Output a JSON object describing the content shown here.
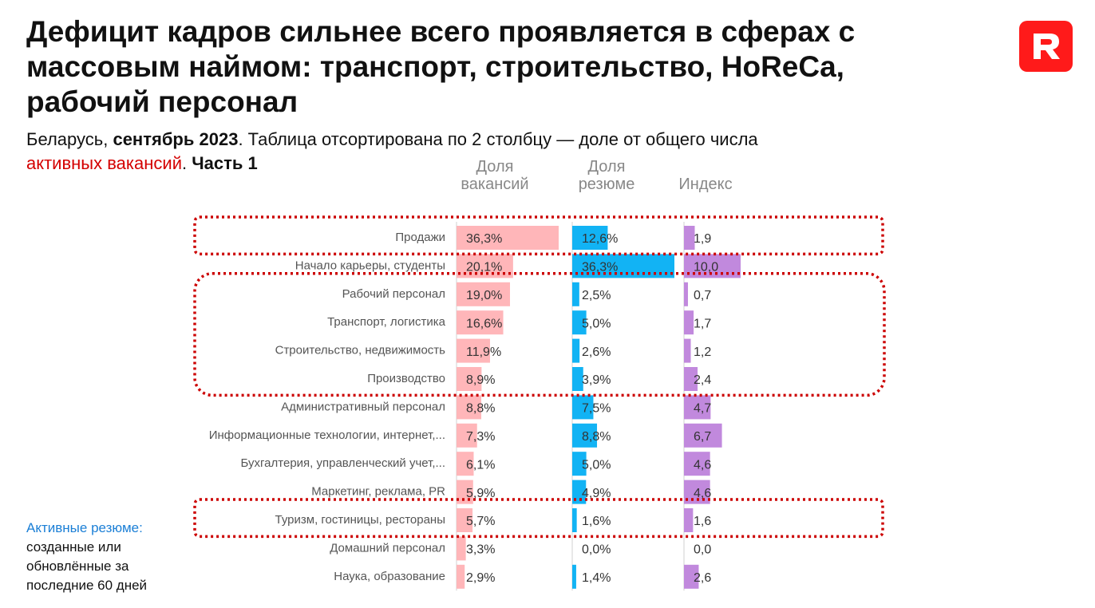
{
  "header": {
    "title": "Дефицит кадров сильнее всего проявляется в сферах с массовым наймом: транспорт, строительство, HoReCa, рабочий персонал",
    "subtitle_country": "Беларусь, ",
    "subtitle_date": "сентябрь 2023",
    "subtitle_sort": ". Таблица отсортирована по 2 столбцу — доле от общего числа ",
    "subtitle_active": "активных вакансий",
    "subtitle_dot": ". ",
    "subtitle_part": "Часть 1"
  },
  "logo": {
    "icon": "logo-r-icon",
    "letter": "R",
    "color": "#ff1a1a"
  },
  "columns": {
    "vacancies": "Доля вакансий",
    "resumes": "Доля резюме",
    "index": "Индекс"
  },
  "note": {
    "highlight": "Активные резюме:",
    "text": "созданные или обновлённые за последние 60 дней"
  },
  "colors": {
    "vacancies": "#ffb6b9",
    "resumes": "#12b3f4",
    "index": "#c189dd",
    "highlight_border": "#cc0000"
  },
  "chart_data": {
    "type": "table",
    "categories": [
      "Продажи",
      "Начало карьеры, студенты",
      "Рабочий персонал",
      "Транспорт, логистика",
      "Строительство, недвижимость",
      "Производство",
      "Административный персонал",
      "Информационные технологии, интернет,...",
      "Бухгалтерия, управленческий учет,...",
      "Маркетинг, реклама, PR",
      "Туризм, гостиницы, рестораны",
      "Домашний персонал",
      "Наука, образование"
    ],
    "series": [
      {
        "name": "Доля вакансий",
        "values": [
          36.3,
          20.1,
          19.0,
          16.6,
          11.9,
          8.9,
          8.8,
          7.3,
          6.1,
          5.9,
          5.7,
          3.3,
          2.9
        ],
        "labels": [
          "36,3%",
          "20,1%",
          "19,0%",
          "16,6%",
          "11,9%",
          "8,9%",
          "8,8%",
          "7,3%",
          "6,1%",
          "5,9%",
          "5,7%",
          "3,3%",
          "2,9%"
        ]
      },
      {
        "name": "Доля резюме",
        "values": [
          12.6,
          36.3,
          2.5,
          5.0,
          2.6,
          3.9,
          7.5,
          8.8,
          5.0,
          4.9,
          1.6,
          0.0,
          1.4
        ],
        "labels": [
          "12,6%",
          "36,3%",
          "2,5%",
          "5,0%",
          "2,6%",
          "3,9%",
          "7,5%",
          "8,8%",
          "5,0%",
          "4,9%",
          "1,6%",
          "0,0%",
          "1,4%"
        ]
      },
      {
        "name": "Индекс",
        "values": [
          1.9,
          10.0,
          0.7,
          1.7,
          1.2,
          2.4,
          4.7,
          6.7,
          4.6,
          4.6,
          1.6,
          0.0,
          2.6
        ],
        "labels": [
          "1,9",
          "10,0",
          "0,7",
          "1,7",
          "1,2",
          "2,4",
          "4,7",
          "6,7",
          "4,6",
          "4,6",
          "1,6",
          "0,0",
          "2,6"
        ]
      }
    ],
    "highlighted_groups": [
      [
        "Продажи"
      ],
      [
        "Рабочий персонал",
        "Транспорт, логистика",
        "Строительство, недвижимость",
        "Производство"
      ],
      [
        "Туризм, гостиницы, рестораны"
      ]
    ]
  }
}
